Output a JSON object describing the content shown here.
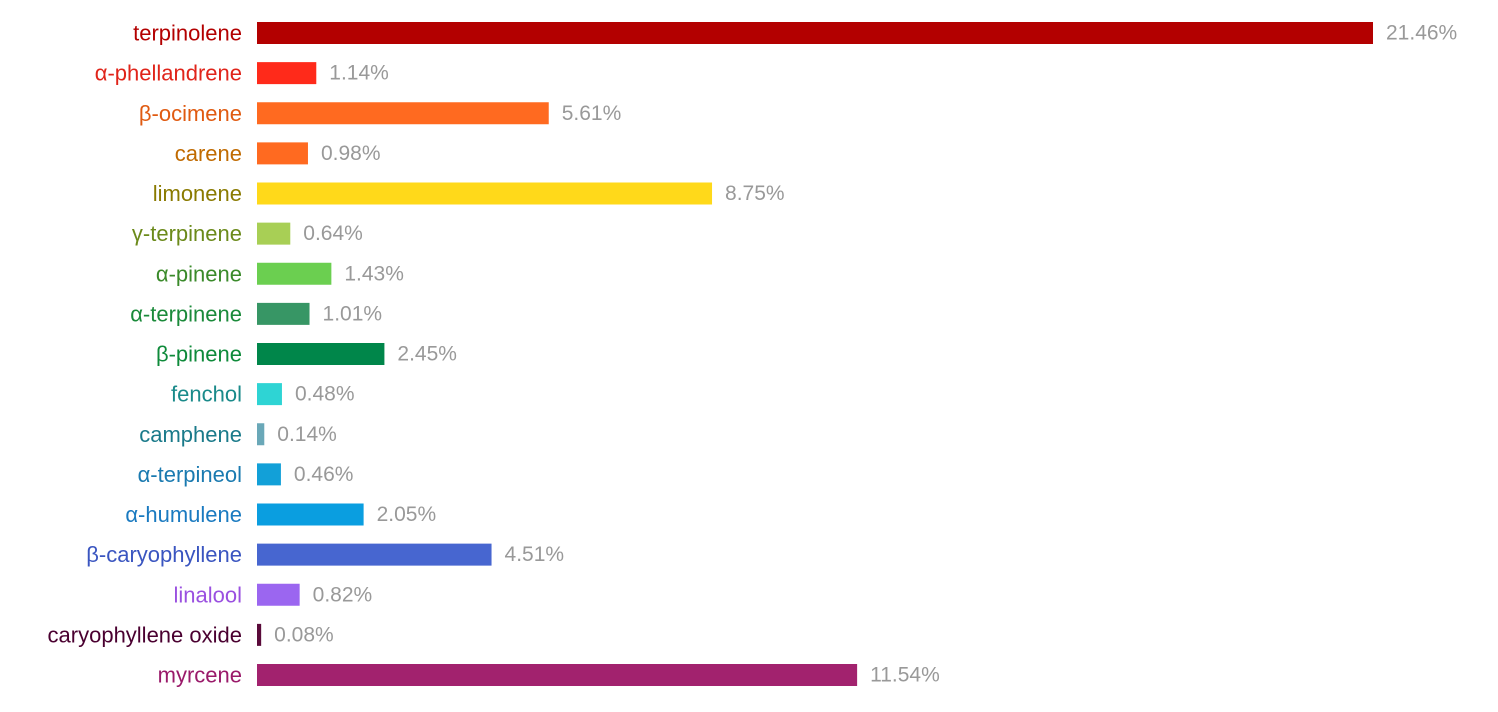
{
  "chart_data": {
    "type": "bar",
    "orientation": "horizontal",
    "categories": [
      "terpinolene",
      "α-phellandrene",
      "β-ocimene",
      "carene",
      "limonene",
      "γ-terpinene",
      "α-pinene",
      "α-terpinene",
      "β-pinene",
      "fenchol",
      "camphene",
      "α-terpineol",
      "α-humulene",
      "β-caryophyllene",
      "linalool",
      "caryophyllene oxide",
      "myrcene"
    ],
    "values": [
      21.46,
      1.14,
      5.61,
      0.98,
      8.75,
      0.64,
      1.43,
      1.01,
      2.45,
      0.48,
      0.14,
      0.46,
      2.05,
      4.51,
      0.82,
      0.08,
      11.54
    ],
    "value_labels": [
      "21.46%",
      "1.14%",
      "5.61%",
      "0.98%",
      "8.75%",
      "0.64%",
      "1.43%",
      "1.01%",
      "2.45%",
      "0.48%",
      "0.14%",
      "0.46%",
      "2.05%",
      "4.51%",
      "0.82%",
      "0.08%",
      "11.54%"
    ],
    "colors": [
      "#b30000",
      "#ff2a1a",
      "#ff6a20",
      "#ff6a20",
      "#ffd91a",
      "#a8cf55",
      "#6bcf50",
      "#379665",
      "#00864a",
      "#2ed4d4",
      "#6aa8b8",
      "#12a0d8",
      "#0a9ee0",
      "#4766d0",
      "#9b66f0",
      "#5a0a3a",
      "#a2226e"
    ],
    "label_colors": [
      "#b30000",
      "#e0241a",
      "#e05a10",
      "#c06a00",
      "#8a7a00",
      "#6b8a1a",
      "#3a8a2a",
      "#1a8a3a",
      "#0e8a3a",
      "#1a8a8a",
      "#1a7a8a",
      "#1a7ab0",
      "#1a7ac0",
      "#3a55c0",
      "#9a50e0",
      "#4a0030",
      "#9a1a6a"
    ],
    "value_label_color": "#999999"
  }
}
